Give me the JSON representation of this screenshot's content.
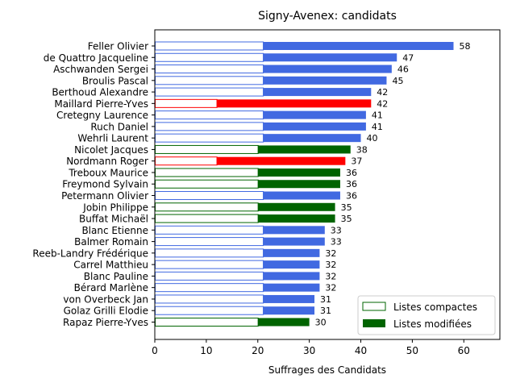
{
  "chart_data": {
    "type": "bar",
    "orientation": "horizontal",
    "title": "Signy-Avenex: candidats",
    "xlabel": "Suffrages des Candidats",
    "ylabel": "",
    "xlim": [
      0,
      67
    ],
    "xticks": [
      "0",
      "10",
      "20",
      "30",
      "40",
      "50",
      "60"
    ],
    "grid": false,
    "legend_position": "bottom-right",
    "legend": [
      {
        "label": "Listes compactes",
        "style": "outline",
        "color": "#006400"
      },
      {
        "label": "Listes modifiées",
        "style": "filled",
        "color": "#006400"
      }
    ],
    "colors": {
      "blue": "#4169e1",
      "red": "#ff0000",
      "green": "#006400"
    },
    "categories": [
      "Feller Olivier",
      "de Quattro Jacqueline",
      "Aschwanden Sergei",
      "Broulis Pascal",
      "Berthoud Alexandre",
      "Maillard Pierre-Yves",
      "Cretegny Laurence",
      "Ruch Daniel",
      "Wehrli Laurent",
      "Nicolet Jacques",
      "Nordmann Roger",
      "Treboux Maurice",
      "Freymond Sylvain",
      "Petermann Olivier",
      "Jobin Philippe",
      "Buffat Michaël",
      "Blanc Etienne",
      "Balmer Romain",
      "Reeb-Landry Frédérique",
      "Carrel Matthieu",
      "Blanc Pauline",
      "Bérard Marlène",
      "von Overbeck Jan",
      "Golaz Grilli Elodie",
      "Rapaz Pierre-Yves"
    ],
    "series": [
      {
        "name": "Listes compactes",
        "values": [
          21,
          21,
          21,
          21,
          21,
          12,
          21,
          21,
          21,
          20,
          12,
          20,
          20,
          21,
          20,
          20,
          21,
          21,
          21,
          21,
          21,
          21,
          21,
          21,
          20
        ]
      },
      {
        "name": "Listes modifiées",
        "values": [
          37,
          26,
          25,
          24,
          21,
          30,
          20,
          20,
          19,
          18,
          25,
          16,
          16,
          15,
          15,
          15,
          12,
          12,
          11,
          11,
          11,
          11,
          10,
          10,
          10
        ]
      }
    ],
    "totals": [
      58,
      47,
      46,
      45,
      42,
      42,
      41,
      41,
      40,
      38,
      37,
      36,
      36,
      36,
      35,
      35,
      33,
      33,
      32,
      32,
      32,
      32,
      31,
      31,
      30
    ],
    "bar_colors": [
      "blue",
      "blue",
      "blue",
      "blue",
      "blue",
      "red",
      "blue",
      "blue",
      "blue",
      "green",
      "red",
      "green",
      "green",
      "blue",
      "green",
      "green",
      "blue",
      "blue",
      "blue",
      "blue",
      "blue",
      "blue",
      "blue",
      "blue",
      "green"
    ]
  }
}
